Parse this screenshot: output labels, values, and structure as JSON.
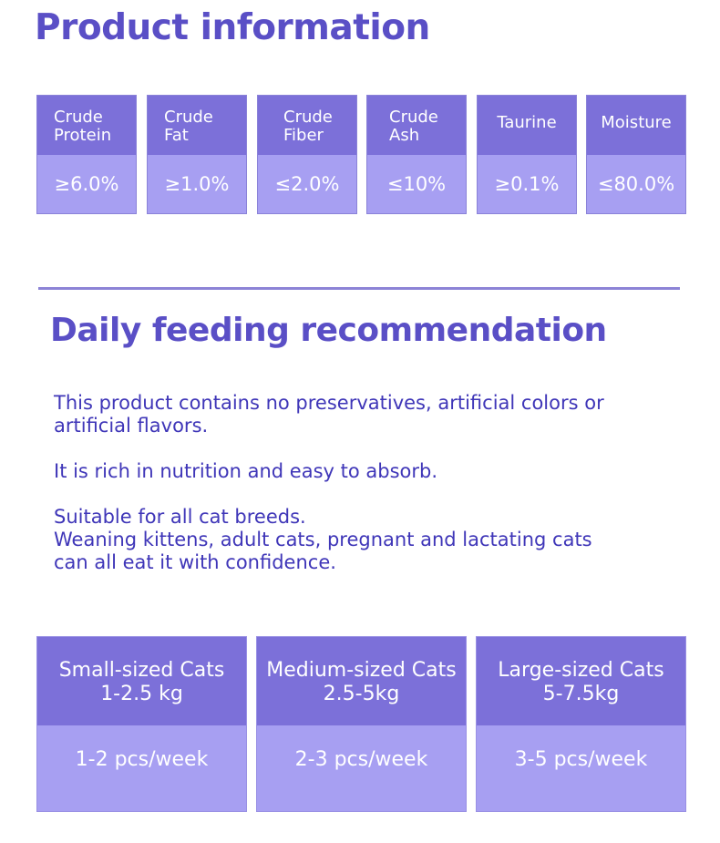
{
  "product_info": {
    "title": "Product information",
    "nutrients": [
      {
        "name_line1": "Crude",
        "name_line2": "Protein",
        "value": "≥6.0%"
      },
      {
        "name_line1": "Crude",
        "name_line2": "Fat",
        "value": "≥1.0%"
      },
      {
        "name_line1": "Crude",
        "name_line2": "Fiber",
        "value": "≤2.0%"
      },
      {
        "name_line1": "Crude",
        "name_line2": "Ash",
        "value": "≤10%"
      },
      {
        "name_line1": "Taurine",
        "name_line2": "",
        "value": "≥0.1%"
      },
      {
        "name_line1": "Moisture",
        "name_line2": "",
        "value": "≤80.0%"
      }
    ]
  },
  "feeding": {
    "title": "Daily feeding recommendation",
    "paragraph1": {
      "line1": "This product contains no preservatives, artificial colors or",
      "line2": "artificial flavors."
    },
    "paragraph2": {
      "line1": "It is rich in nutrition and easy to absorb."
    },
    "paragraph3": {
      "line1": "Suitable for all cat breeds.",
      "line2": "Weaning kittens, adult cats, pregnant and lactating cats",
      "line3": "can all eat it with confidence."
    }
  },
  "cat_sizes": [
    {
      "label": "Small-sized Cats",
      "weight": "1-2.5 kg",
      "amount": "1-2 pcs/week"
    },
    {
      "label": "Medium-sized Cats",
      "weight": "2.5-5kg",
      "amount": "2-3 pcs/week"
    },
    {
      "label": "Large-sized Cats",
      "weight": "5-7.5kg",
      "amount": "3-5 pcs/week"
    }
  ],
  "colors": {
    "heading": "#5a4fc6",
    "body_text": "#3f36b8",
    "header_cell": "#7c70d9",
    "value_cell": "#a79ff2",
    "divider": "#8c83d6"
  }
}
